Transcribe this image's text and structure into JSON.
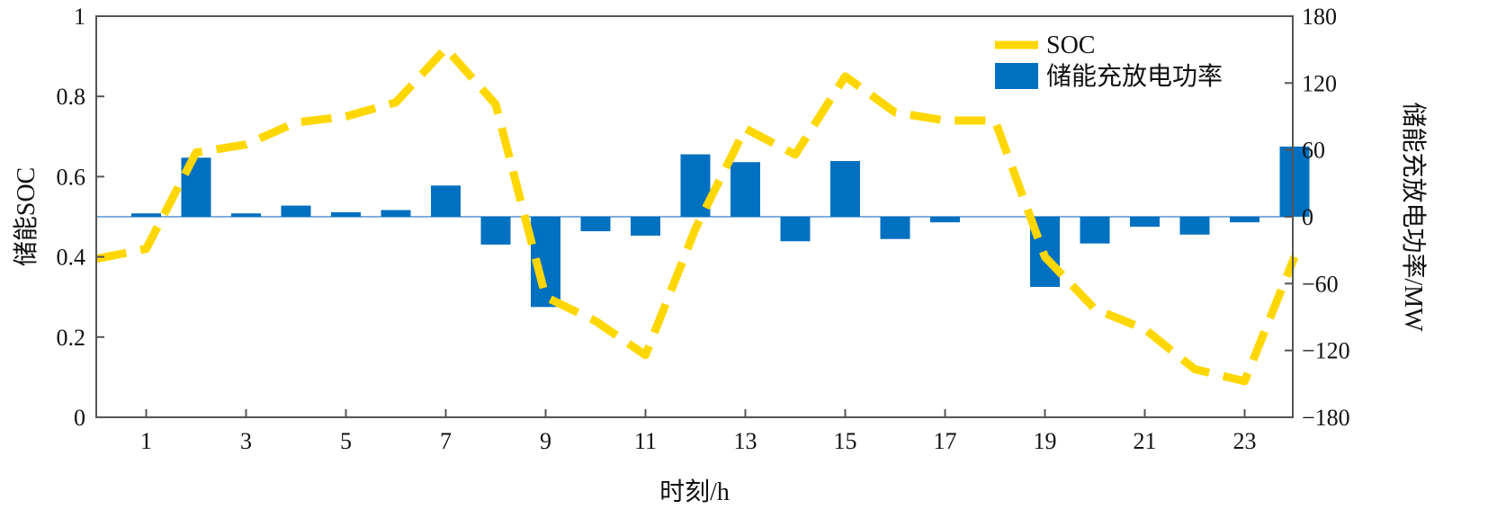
{
  "chart_data": {
    "type": "bar+line",
    "x": [
      1,
      2,
      3,
      4,
      5,
      6,
      7,
      8,
      9,
      10,
      11,
      12,
      13,
      14,
      15,
      16,
      17,
      18,
      19,
      20,
      21,
      22,
      23,
      24
    ],
    "x_ticks": [
      "1",
      "3",
      "5",
      "7",
      "9",
      "11",
      "13",
      "15",
      "17",
      "19",
      "21",
      "23"
    ],
    "xlabel": "时刻/h",
    "ylabel_left": "储能SOC",
    "ylabel_right": "储能充放电功率/MW",
    "ylim_left": [
      0,
      1
    ],
    "ylim_right": [
      -180,
      180
    ],
    "left_ticks": [
      "0",
      "0.2",
      "0.4",
      "0.6",
      "0.8",
      "1"
    ],
    "right_ticks": [
      "−180",
      "−120",
      "−60",
      "0",
      "60",
      "120",
      "180"
    ],
    "series": [
      {
        "name": "SOC",
        "axis": "left",
        "style": "dashed-line",
        "color": "#FFD700",
        "points": [
          [
            0,
            0.395
          ],
          [
            1,
            0.42
          ],
          [
            2,
            0.66
          ],
          [
            3,
            0.68
          ],
          [
            4,
            0.735
          ],
          [
            5,
            0.75
          ],
          [
            6,
            0.785
          ],
          [
            7,
            0.92
          ],
          [
            8,
            0.78
          ],
          [
            9,
            0.3
          ],
          [
            10,
            0.24
          ],
          [
            11,
            0.155
          ],
          [
            12,
            0.47
          ],
          [
            13,
            0.72
          ],
          [
            14,
            0.655
          ],
          [
            15,
            0.85
          ],
          [
            16,
            0.76
          ],
          [
            17,
            0.74
          ],
          [
            18,
            0.74
          ],
          [
            19,
            0.4
          ],
          [
            20,
            0.27
          ],
          [
            21,
            0.22
          ],
          [
            22,
            0.12
          ],
          [
            23,
            0.09
          ],
          [
            24,
            0.4
          ]
        ]
      },
      {
        "name": "储能充放电功率",
        "axis": "right",
        "style": "bar",
        "color": "#0070C0",
        "values": [
          3,
          53,
          3,
          10,
          4,
          6,
          28,
          -25,
          -81,
          -13,
          -17,
          56,
          49,
          -22,
          50,
          -20,
          -5,
          0,
          -63,
          -24,
          -9,
          -16,
          -5,
          63
        ]
      }
    ],
    "legend": [
      "SOC",
      "储能充放电功率"
    ],
    "legend_position": "top-right",
    "zero_line_color": "#7FAEDC",
    "grid": false
  }
}
